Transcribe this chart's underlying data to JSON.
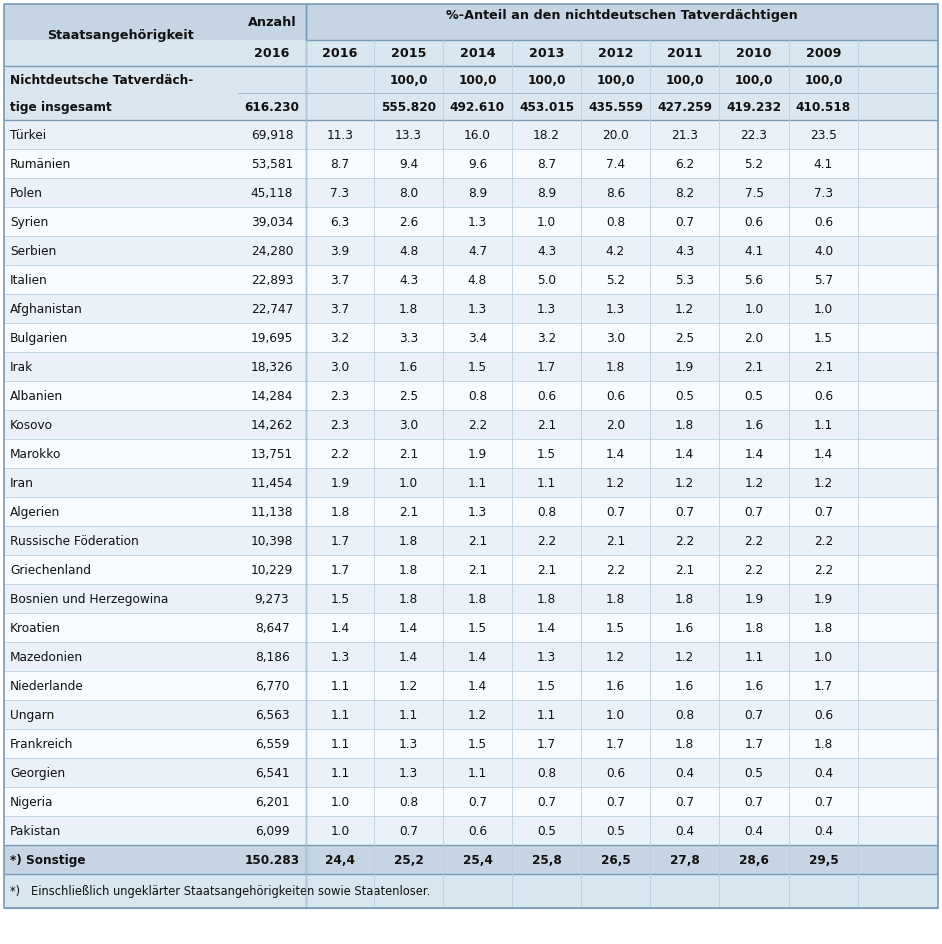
{
  "title_row1": "%-Anteil an den nichtdeutschen Tatverdächtigen",
  "header_col1": "Staatsangehörigkeit",
  "header_anzahl": "Anzahl",
  "year_headers": [
    "2016",
    "2015",
    "2014",
    "2013",
    "2012",
    "2011",
    "2010",
    "2009"
  ],
  "special_row_label1": "Nichtdeutsche Tatverdäch-",
  "special_row_label2": "tige insgesamt",
  "special_row_anzahl": "616.230",
  "special_row_pct": [
    "",
    "100,0",
    "100,0",
    "100,0",
    "100,0",
    "100,0",
    "100,0",
    "100,0"
  ],
  "special_row_numbers": [
    "",
    "555.820",
    "492.610",
    "453.015",
    "435.559",
    "427.259",
    "419.232",
    "410.518"
  ],
  "rows": [
    [
      "Türkei",
      "69,918",
      "11.3",
      "13.3",
      "16.0",
      "18.2",
      "20.0",
      "21.3",
      "22.3",
      "23.5"
    ],
    [
      "Rumänien",
      "53,581",
      "8.7",
      "9.4",
      "9.6",
      "8.7",
      "7.4",
      "6.2",
      "5.2",
      "4.1"
    ],
    [
      "Polen",
      "45,118",
      "7.3",
      "8.0",
      "8.9",
      "8.9",
      "8.6",
      "8.2",
      "7.5",
      "7.3"
    ],
    [
      "Syrien",
      "39,034",
      "6.3",
      "2.6",
      "1.3",
      "1.0",
      "0.8",
      "0.7",
      "0.6",
      "0.6"
    ],
    [
      "Serbien",
      "24,280",
      "3.9",
      "4.8",
      "4.7",
      "4.3",
      "4.2",
      "4.3",
      "4.1",
      "4.0"
    ],
    [
      "Italien",
      "22,893",
      "3.7",
      "4.3",
      "4.8",
      "5.0",
      "5.2",
      "5.3",
      "5.6",
      "5.7"
    ],
    [
      "Afghanistan",
      "22,747",
      "3.7",
      "1.8",
      "1.3",
      "1.3",
      "1.3",
      "1.2",
      "1.0",
      "1.0"
    ],
    [
      "Bulgarien",
      "19,695",
      "3.2",
      "3.3",
      "3.4",
      "3.2",
      "3.0",
      "2.5",
      "2.0",
      "1.5"
    ],
    [
      "Irak",
      "18,326",
      "3.0",
      "1.6",
      "1.5",
      "1.7",
      "1.8",
      "1.9",
      "2.1",
      "2.1"
    ],
    [
      "Albanien",
      "14,284",
      "2.3",
      "2.5",
      "0.8",
      "0.6",
      "0.6",
      "0.5",
      "0.5",
      "0.6"
    ],
    [
      "Kosovo",
      "14,262",
      "2.3",
      "3.0",
      "2.2",
      "2.1",
      "2.0",
      "1.8",
      "1.6",
      "1.1"
    ],
    [
      "Marokko",
      "13,751",
      "2.2",
      "2.1",
      "1.9",
      "1.5",
      "1.4",
      "1.4",
      "1.4",
      "1.4"
    ],
    [
      "Iran",
      "11,454",
      "1.9",
      "1.0",
      "1.1",
      "1.1",
      "1.2",
      "1.2",
      "1.2",
      "1.2"
    ],
    [
      "Algerien",
      "11,138",
      "1.8",
      "2.1",
      "1.3",
      "0.8",
      "0.7",
      "0.7",
      "0.7",
      "0.7"
    ],
    [
      "Russische Föderation",
      "10,398",
      "1.7",
      "1.8",
      "2.1",
      "2.2",
      "2.1",
      "2.2",
      "2.2",
      "2.2"
    ],
    [
      "Griechenland",
      "10,229",
      "1.7",
      "1.8",
      "2.1",
      "2.1",
      "2.2",
      "2.1",
      "2.2",
      "2.2"
    ],
    [
      "Bosnien und Herzegowina",
      "9,273",
      "1.5",
      "1.8",
      "1.8",
      "1.8",
      "1.8",
      "1.8",
      "1.9",
      "1.9"
    ],
    [
      "Kroatien",
      "8,647",
      "1.4",
      "1.4",
      "1.5",
      "1.4",
      "1.5",
      "1.6",
      "1.8",
      "1.8"
    ],
    [
      "Mazedonien",
      "8,186",
      "1.3",
      "1.4",
      "1.4",
      "1.3",
      "1.2",
      "1.2",
      "1.1",
      "1.0"
    ],
    [
      "Niederlande",
      "6,770",
      "1.1",
      "1.2",
      "1.4",
      "1.5",
      "1.6",
      "1.6",
      "1.6",
      "1.7"
    ],
    [
      "Ungarn",
      "6,563",
      "1.1",
      "1.1",
      "1.2",
      "1.1",
      "1.0",
      "0.8",
      "0.7",
      "0.6"
    ],
    [
      "Frankreich",
      "6,559",
      "1.1",
      "1.3",
      "1.5",
      "1.7",
      "1.7",
      "1.8",
      "1.7",
      "1.8"
    ],
    [
      "Georgien",
      "6,541",
      "1.1",
      "1.3",
      "1.1",
      "0.8",
      "0.6",
      "0.4",
      "0.5",
      "0.4"
    ],
    [
      "Nigeria",
      "6,201",
      "1.0",
      "0.8",
      "0.7",
      "0.7",
      "0.7",
      "0.7",
      "0.7",
      "0.7"
    ],
    [
      "Pakistan",
      "6,099",
      "1.0",
      "0.7",
      "0.6",
      "0.5",
      "0.5",
      "0.4",
      "0.4",
      "0.4"
    ]
  ],
  "sonstige_label": "*) Sonstige",
  "sonstige_anzahl": "150.283",
  "sonstige_pct": [
    "24,4",
    "25,2",
    "25,4",
    "25,8",
    "26,5",
    "27,8",
    "28,6",
    "29,5"
  ],
  "footnote": "*)   Einschließlich ungeklärter Staatsangehörigkeiten sowie Staatenloser.",
  "bg_header": "#c5d5e4",
  "bg_subheader": "#d8e6f0",
  "bg_special": "#dae6f0",
  "bg_even": "#eaf1f8",
  "bg_odd": "#f8fbfd",
  "bg_sonstige": "#c5d5e4",
  "bg_footnote": "#d8e6f0",
  "line_color_dark": "#7a9ab5",
  "line_color_mid": "#9ab5c8",
  "line_color_light": "#b8cfe0"
}
